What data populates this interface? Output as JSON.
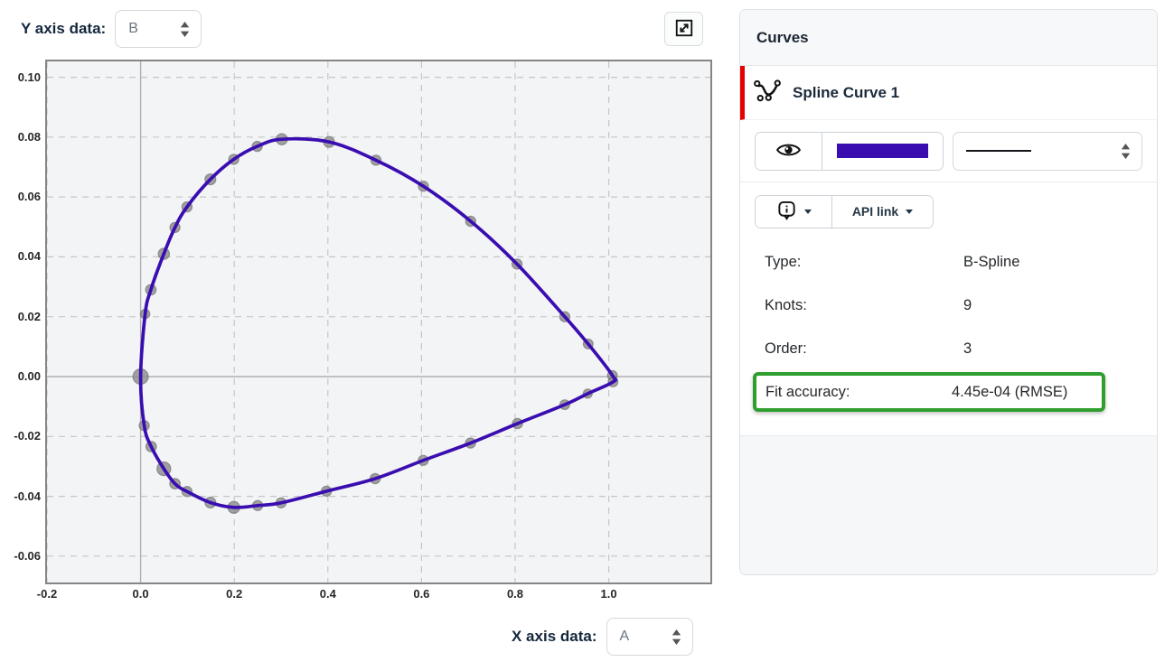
{
  "toolbar": {
    "y_axis_label": "Y axis data:",
    "y_axis_value": "B",
    "x_axis_label": "X axis data:",
    "x_axis_value": "A"
  },
  "icons": {
    "expand": "expand-icon",
    "eye": "eye-visibility-icon",
    "spline": "spline-curve-icon",
    "info": "info-bubble-icon",
    "caret": "caret-down-icon",
    "select_arrows": "select-arrows-icon"
  },
  "panel": {
    "header": "Curves",
    "curve": {
      "name": "Spline Curve 1",
      "color": "#3a0db1",
      "accent_red": "#e60000",
      "highlight_green": "#2e9e2e",
      "line_style": "solid",
      "api_link_label": "API link",
      "details": [
        {
          "label": "Type:",
          "value": "B-Spline",
          "highlight": false
        },
        {
          "label": "Knots:",
          "value": "9",
          "highlight": false
        },
        {
          "label": "Order:",
          "value": "3",
          "highlight": false
        },
        {
          "label": "Fit accuracy:",
          "value": "4.45e-04 (RMSE)",
          "highlight": true
        }
      ]
    }
  },
  "chart_data": {
    "type": "scatter",
    "title": "",
    "xlabel": "A",
    "ylabel": "B",
    "xlim": [
      -0.2,
      1.217
    ],
    "ylim": [
      -0.0688,
      0.1053
    ],
    "grid": true,
    "x_ticks": [
      -0.2,
      0.0,
      0.2,
      0.4,
      0.6,
      0.8,
      1.0
    ],
    "x_tick_labels": [
      "-0.2",
      "0.0",
      "0.2",
      "0.4",
      "0.6",
      "0.8",
      "1.0"
    ],
    "y_ticks": [
      0.1,
      0.08,
      0.06,
      0.04,
      0.02,
      0.0,
      -0.02,
      -0.04,
      -0.06
    ],
    "y_tick_labels": [
      "0.10",
      "0.08",
      "0.06",
      "0.04",
      "0.02",
      "0.00",
      "-0.02",
      "-0.04",
      "-0.06"
    ],
    "curve_color": "#3a0db1",
    "point_color": "#8e8e8e",
    "series": [
      {
        "name": "Spline Curve 1",
        "closed": true,
        "points": [
          [
            0.0,
            0.0,
            8.5
          ],
          [
            0.0096,
            0.0209,
            5.2
          ],
          [
            0.0218,
            0.029,
            5.8
          ],
          [
            0.0496,
            0.041,
            6.2
          ],
          [
            0.0733,
            0.0498,
            5.6
          ],
          [
            0.099,
            0.0567,
            5.6
          ],
          [
            0.149,
            0.0659,
            6.0
          ],
          [
            0.199,
            0.0726,
            5.6
          ],
          [
            0.249,
            0.0769,
            5.6
          ],
          [
            0.3015,
            0.0793,
            6.2
          ],
          [
            0.4025,
            0.0784,
            6.0
          ],
          [
            0.5027,
            0.0723,
            5.6
          ],
          [
            0.604,
            0.0636,
            5.6
          ],
          [
            0.705,
            0.0519,
            5.6
          ],
          [
            0.804,
            0.0376,
            5.6
          ],
          [
            0.906,
            0.02,
            5.6
          ],
          [
            0.956,
            0.0109,
            5.4
          ],
          [
            1.0077,
            0.0004,
            5.4
          ],
          [
            1.009,
            -0.0018,
            5.4
          ],
          [
            0.955,
            -0.0057,
            5.0
          ],
          [
            0.906,
            -0.0094,
            5.4
          ],
          [
            0.805,
            -0.0157,
            5.6
          ],
          [
            0.7046,
            -0.0222,
            5.6
          ],
          [
            0.6037,
            -0.028,
            5.6
          ],
          [
            0.501,
            -0.0341,
            5.6
          ],
          [
            0.397,
            -0.0383,
            5.6
          ],
          [
            0.3,
            -0.0422,
            5.6
          ],
          [
            0.25,
            -0.0431,
            5.6
          ],
          [
            0.199,
            -0.0437,
            6.6
          ],
          [
            0.149,
            -0.0421,
            6.0
          ],
          [
            0.099,
            -0.0384,
            5.6
          ],
          [
            0.0733,
            -0.0358,
            5.8
          ],
          [
            0.0496,
            -0.0308,
            7.6
          ],
          [
            0.0226,
            -0.0234,
            5.8
          ],
          [
            0.0077,
            -0.0164,
            5.6
          ]
        ]
      }
    ]
  }
}
